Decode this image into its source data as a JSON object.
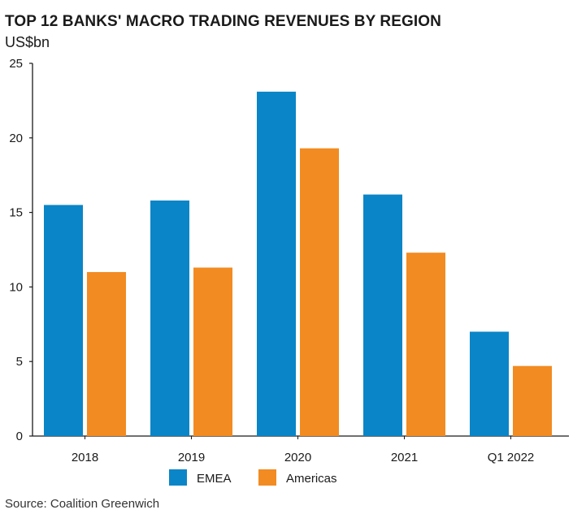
{
  "chart_data": {
    "type": "bar",
    "title": "TOP 12 BANKS' MACRO TRADING REVENUES BY REGION",
    "ylabel": "US$bn",
    "xlabel": "",
    "categories": [
      "2018",
      "2019",
      "2020",
      "2021",
      "Q1 2022"
    ],
    "series": [
      {
        "name": "EMEA",
        "color": "#0a85c7",
        "values": [
          15.5,
          15.8,
          23.1,
          16.2,
          7.0
        ]
      },
      {
        "name": "Americas",
        "color": "#f28b21",
        "values": [
          11.0,
          11.3,
          19.3,
          12.3,
          4.7
        ]
      }
    ],
    "ylim": [
      0,
      25
    ],
    "yticks": [
      "0",
      "5",
      "10",
      "15",
      "20",
      "25"
    ],
    "grid": false,
    "legend": "bottom-center"
  },
  "source": "Source: Coalition Greenwich"
}
